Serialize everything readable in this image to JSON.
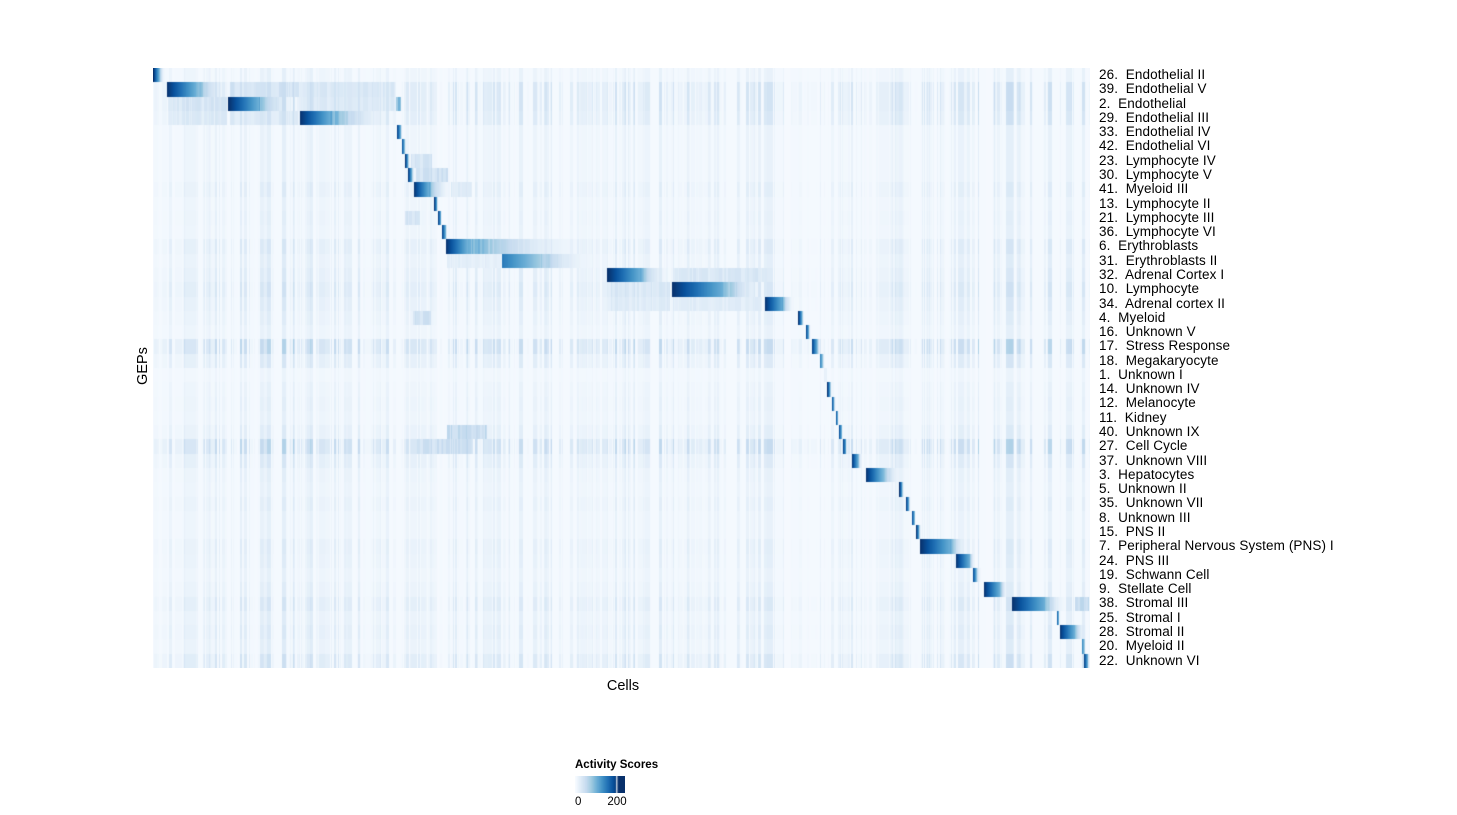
{
  "chart_data": {
    "type": "heatmap",
    "title": "",
    "xlabel": "Cells",
    "ylabel": "GEPs",
    "x_axis": {
      "description": "individual cells as columns, no tick labels shown",
      "tick_labels": []
    },
    "colorscale": {
      "name": "Blues",
      "low_color": "#f7fbff",
      "high_color": "#08306b"
    },
    "legend": {
      "title": "Activity Scores",
      "tick_labels": [
        "0",
        "200"
      ],
      "tick_values": [
        0,
        200
      ]
    },
    "value_unit": "activity score",
    "block_coords": "fractions of x-axis: [start, dark_core_end, fade_end]",
    "noise_regions": [
      [
        0.0,
        0.015,
        0.5
      ],
      [
        0.015,
        0.08,
        0.9
      ],
      [
        0.08,
        0.155,
        1.0
      ],
      [
        0.155,
        0.255,
        0.9
      ],
      [
        0.255,
        0.262,
        0.3
      ],
      [
        0.262,
        0.315,
        0.6
      ],
      [
        0.315,
        0.44,
        0.8
      ],
      [
        0.44,
        0.485,
        0.6
      ],
      [
        0.485,
        0.555,
        0.85
      ],
      [
        0.555,
        0.655,
        0.8
      ],
      [
        0.655,
        0.688,
        0.9
      ],
      [
        0.688,
        0.742,
        0.55
      ],
      [
        0.742,
        0.8,
        0.8
      ],
      [
        0.8,
        0.88,
        0.7
      ],
      [
        0.88,
        1.001,
        1.0
      ]
    ],
    "rows": [
      {
        "label": "26.  Endothelial II",
        "block": [
          0.0,
          0.006,
          0.012
        ],
        "peak": 1,
        "noise": 0.3
      },
      {
        "label": "39.  Endothelial V",
        "block": [
          0.014,
          0.045,
          0.084
        ],
        "peak": 1,
        "noise": 0.75,
        "sec": [
          [
            0.082,
            0.155,
            0.22
          ],
          [
            0.157,
            0.258,
            0.18
          ]
        ]
      },
      {
        "label": "2.  Endothelial",
        "block": [
          0.08,
          0.112,
          0.155
        ],
        "peak": 1,
        "noise": 0.75,
        "sec": [
          [
            0.015,
            0.079,
            0.2
          ],
          [
            0.157,
            0.258,
            0.16
          ],
          [
            0.259,
            0.264,
            0.5
          ]
        ]
      },
      {
        "label": "29.  Endothelial III",
        "block": [
          0.156,
          0.189,
          0.258
        ],
        "peak": 1,
        "noise": 0.65,
        "sec": [
          [
            0.015,
            0.079,
            0.16
          ],
          [
            0.082,
            0.154,
            0.16
          ]
        ]
      },
      {
        "label": "33.  Endothelial IV",
        "block": [
          0.26,
          0.264,
          0.266
        ],
        "peak": 1,
        "noise": 0.3
      },
      {
        "label": "42.  Endothelial VI",
        "block": [
          0.265,
          0.268,
          0.27
        ],
        "peak": 1,
        "noise": 0.3
      },
      {
        "label": "23.  Lymphocyte IV",
        "block": [
          0.269,
          0.272,
          0.274
        ],
        "peak": 1,
        "noise": 0.3,
        "sec": [
          [
            0.275,
            0.298,
            0.22
          ]
        ]
      },
      {
        "label": "30.  Lymphocyte V",
        "block": [
          0.272,
          0.276,
          0.279
        ],
        "peak": 1,
        "noise": 0.3,
        "sec": [
          [
            0.28,
            0.315,
            0.25
          ]
        ]
      },
      {
        "label": "41.  Myeloid III",
        "block": [
          0.278,
          0.294,
          0.317
        ],
        "peak": 1,
        "noise": 0.45,
        "sec": [
          [
            0.318,
            0.34,
            0.15
          ]
        ]
      },
      {
        "label": "13.  Lymphocyte II",
        "block": [
          0.3,
          0.303,
          0.304
        ],
        "peak": 1,
        "noise": 0.3
      },
      {
        "label": "21.  Lymphocyte III",
        "block": [
          0.304,
          0.307,
          0.308
        ],
        "peak": 1,
        "noise": 0.35,
        "sec": [
          [
            0.269,
            0.285,
            0.22
          ]
        ]
      },
      {
        "label": "36.  Lymphocyte VI",
        "block": [
          0.308,
          0.312,
          0.314
        ],
        "peak": 1,
        "noise": 0.3
      },
      {
        "label": "6.  Erythroblasts",
        "block": [
          0.312,
          0.335,
          0.466
        ],
        "peak": 1,
        "noise": 0.55
      },
      {
        "label": "31.  Erythroblasts II",
        "block": [
          0.372,
          0.413,
          0.472
        ],
        "peak": 0.72,
        "noise": 0.4,
        "sec": [
          [
            0.314,
            0.367,
            0.12
          ]
        ]
      },
      {
        "label": "32.  Adrenal Cortex I",
        "block": [
          0.485,
          0.52,
          0.55
        ],
        "peak": 1,
        "noise": 0.5,
        "sec": [
          [
            0.555,
            0.655,
            0.18
          ]
        ]
      },
      {
        "label": "10.  Lymphocyte",
        "block": [
          0.554,
          0.608,
          0.654
        ],
        "peak": 1,
        "noise": 0.65,
        "sec": [
          [
            0.485,
            0.552,
            0.18
          ]
        ]
      },
      {
        "label": "34.  Adrenal cortex II",
        "block": [
          0.653,
          0.672,
          0.684
        ],
        "peak": 1,
        "noise": 0.5,
        "sec": [
          [
            0.485,
            0.552,
            0.15
          ],
          [
            0.556,
            0.65,
            0.13
          ]
        ]
      },
      {
        "label": "4.  Myeloid",
        "block": [
          0.689,
          0.693,
          0.695
        ],
        "peak": 1,
        "noise": 0.4,
        "sec": [
          [
            0.277,
            0.297,
            0.25
          ]
        ]
      },
      {
        "label": "16.  Unknown V",
        "block": [
          0.697,
          0.7,
          0.702
        ],
        "peak": 1,
        "noise": 0.3
      },
      {
        "label": "17.  Stress Response",
        "block": [
          0.703,
          0.709,
          0.713
        ],
        "peak": 1,
        "noise": 1.0
      },
      {
        "label": "18.  Megakaryocyte",
        "block": [
          0.712,
          0.715,
          0.717
        ],
        "peak": 0.75,
        "noise": 0.55
      },
      {
        "label": "1.  Unknown I",
        "block": [
          0.716,
          0.719,
          0.72
        ],
        "peak": 0.1,
        "noise": 0.2
      },
      {
        "label": "14.  Unknown IV",
        "block": [
          0.72,
          0.723,
          0.7246
        ],
        "peak": 1,
        "noise": 0.3
      },
      {
        "label": "12.  Melanocyte",
        "block": [
          0.7246,
          0.727,
          0.7289
        ],
        "peak": 1,
        "noise": 0.35
      },
      {
        "label": "11.  Kidney",
        "block": [
          0.7289,
          0.731,
          0.7321
        ],
        "peak": 1,
        "noise": 0.3
      },
      {
        "label": "40.  Unknown IX",
        "block": [
          0.7321,
          0.735,
          0.7364
        ],
        "peak": 1,
        "noise": 0.45,
        "sec": [
          [
            0.314,
            0.356,
            0.3
          ]
        ]
      },
      {
        "label": "27.  Cell Cycle",
        "block": [
          0.7364,
          0.74,
          0.7407
        ],
        "peak": 1,
        "noise": 1.0,
        "sec": [
          [
            0.282,
            0.341,
            0.26
          ]
        ]
      },
      {
        "label": "37.  Unknown VIII",
        "block": [
          0.746,
          0.753,
          0.7567
        ],
        "peak": 1,
        "noise": 0.55
      },
      {
        "label": "3.  Hepatocytes",
        "block": [
          0.761,
          0.778,
          0.8
        ],
        "peak": 1,
        "noise": 0.35
      },
      {
        "label": "5.  Unknown II",
        "block": [
          0.797,
          0.8,
          0.802
        ],
        "peak": 1,
        "noise": 0.3
      },
      {
        "label": "35.  Unknown VII",
        "block": [
          0.804,
          0.807,
          0.809
        ],
        "peak": 1,
        "noise": 0.4
      },
      {
        "label": "8.  Unknown III",
        "block": [
          0.81,
          0.813,
          0.814
        ],
        "peak": 1,
        "noise": 0.3
      },
      {
        "label": "15.  PNS II",
        "block": [
          0.815,
          0.818,
          0.82
        ],
        "peak": 1,
        "noise": 0.3
      },
      {
        "label": "7.  Peripheral Nervous System (PNS) I",
        "block": [
          0.819,
          0.851,
          0.87
        ],
        "peak": 1,
        "noise": 0.45
      },
      {
        "label": "24.  PNS III",
        "block": [
          0.857,
          0.872,
          0.878
        ],
        "peak": 1,
        "noise": 0.4
      },
      {
        "label": "19.  Schwann Cell",
        "block": [
          0.8751,
          0.879,
          0.8836
        ],
        "peak": 1,
        "noise": 0.3
      },
      {
        "label": "9.  Stellate Cell",
        "block": [
          0.887,
          0.904,
          0.9125
        ],
        "peak": 1,
        "noise": 0.4
      },
      {
        "label": "38.  Stromal III",
        "block": [
          0.917,
          0.952,
          0.974
        ],
        "peak": 1,
        "noise": 0.6,
        "sec": [
          [
            0.985,
            1.0,
            0.3
          ]
        ]
      },
      {
        "label": "25.  Stromal I",
        "block": [
          0.9648,
          0.967,
          0.968
        ],
        "peak": 1,
        "noise": 0.4
      },
      {
        "label": "28.  Stromal II",
        "block": [
          0.968,
          0.984,
          0.996
        ],
        "peak": 1,
        "noise": 0.5
      },
      {
        "label": "20.  Myeloid II",
        "block": [
          0.9925,
          0.995,
          0.9957
        ],
        "peak": 0.65,
        "noise": 0.4
      },
      {
        "label": "22.  Unknown VI",
        "block": [
          0.994,
          0.998,
          1.0
        ],
        "peak": 1,
        "noise": 0.7
      }
    ]
  }
}
